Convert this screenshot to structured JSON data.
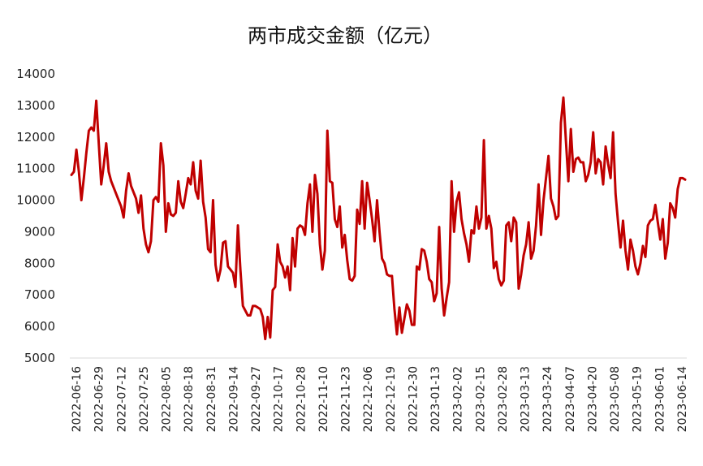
{
  "chart_data": {
    "type": "line",
    "title": "两市成交金额（亿元）",
    "xlabel": "",
    "ylabel": "",
    "ylim": [
      5000,
      14000
    ],
    "y_ticks": [
      "5000",
      "6000",
      "7000",
      "8000",
      "9000",
      "10000",
      "11000",
      "12000",
      "13000",
      "14000"
    ],
    "x_tick_labels": [
      "2022-06-16",
      "2022-06-29",
      "2022-07-12",
      "2022-07-25",
      "2022-08-05",
      "2022-08-18",
      "2022-08-31",
      "2022-09-14",
      "2022-09-27",
      "2022-10-17",
      "2022-10-28",
      "2022-11-10",
      "2022-11-23",
      "2022-12-06",
      "2022-12-19",
      "2022-12-30",
      "2023-01-13",
      "2023-02-02",
      "2023-02-15",
      "2023-02-28",
      "2023-03-13",
      "2023-03-24",
      "2023-04-07",
      "2023-04-20",
      "2023-05-08",
      "2023-05-19",
      "2023-06-01",
      "2023-06-14"
    ],
    "grid": false,
    "legend": "none",
    "series": [
      {
        "color": "#C00000",
        "values": [
          10800,
          10900,
          11600,
          10900,
          10000,
          10700,
          11500,
          12200,
          12300,
          12200,
          13150,
          11800,
          10500,
          11100,
          11800,
          10900,
          10600,
          10400,
          10200,
          10000,
          9800,
          9450,
          10300,
          10850,
          10450,
          10250,
          10050,
          9600,
          10150,
          9100,
          8600,
          8350,
          8700,
          10000,
          10100,
          9950,
          11800,
          11100,
          9000,
          9900,
          9550,
          9500,
          9600,
          10600,
          9950,
          9750,
          10200,
          10700,
          10500,
          11200,
          10300,
          10050,
          11250,
          9950,
          9450,
          8450,
          8350,
          10000,
          7950,
          7450,
          7800,
          8650,
          8700,
          7900,
          7800,
          7700,
          7250,
          9200,
          7800,
          6650,
          6500,
          6350,
          6350,
          6650,
          6650,
          6600,
          6550,
          6300,
          5600,
          6300,
          5650,
          7150,
          7250,
          8600,
          8050,
          7900,
          7550,
          7900,
          7150,
          8800,
          7900,
          9100,
          9200,
          9150,
          8900,
          9900,
          10500,
          9000,
          10800,
          10200,
          8600,
          7800,
          8400,
          12200,
          10600,
          10550,
          9400,
          9150,
          9800,
          8500,
          8900,
          8100,
          7500,
          7450,
          7600,
          9700,
          9250,
          10600,
          9100,
          10550,
          10000,
          9400,
          8700,
          10000,
          9000,
          8150,
          8000,
          7650,
          7600,
          7600,
          6550,
          5750,
          6600,
          5800,
          6250,
          6700,
          6500,
          6050,
          6050,
          7900,
          7800,
          8450,
          8400,
          8050,
          7500,
          7400,
          6800,
          7050,
          9150,
          7200,
          6350,
          6900,
          7400,
          10600,
          9000,
          9950,
          10250,
          9400,
          8950,
          8600,
          8050,
          9050,
          8950,
          9800,
          9100,
          9450,
          11900,
          9100,
          9500,
          9100,
          7850,
          8050,
          7500,
          7300,
          7450,
          9200,
          9300,
          8700,
          9450,
          9300,
          7200,
          7650,
          8250,
          8600,
          9300,
          8150,
          8400,
          9200,
          10500,
          8900,
          10000,
          10700,
          11400,
          10050,
          9800,
          9400,
          9500,
          12450,
          13250,
          11900,
          10600,
          12250,
          10900,
          11300,
          11350,
          11200,
          11200,
          10600,
          10800,
          11200,
          12150,
          10850,
          11300,
          11200,
          10500,
          11700,
          11150,
          10700,
          12150,
          10200,
          9300,
          8500,
          9350,
          8400,
          7800,
          8750,
          8400,
          7900,
          7650,
          8000,
          8550,
          8200,
          9200,
          9350,
          9400,
          9850,
          9300,
          8750,
          9400,
          8150,
          8650,
          9900,
          9750,
          9450,
          10350,
          10700,
          10700,
          10650
        ]
      }
    ]
  }
}
